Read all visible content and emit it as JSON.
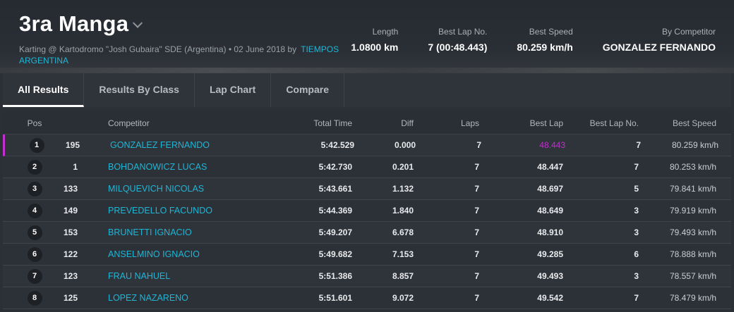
{
  "header": {
    "title": "3ra Manga",
    "subtitle_text": "Karting @ Kartodromo \"Josh Gubaira\" SDE (Argentina) • 02 June 2018 by",
    "organizer_link": "TIEMPOS ARGENTINA"
  },
  "stats": [
    {
      "label": "Length",
      "value": "1.0800 km"
    },
    {
      "label": "Best Lap No.",
      "value": "7 (00:48.443)"
    },
    {
      "label": "Best Speed",
      "value": "80.259 km/h"
    },
    {
      "label": "By Competitor",
      "value": "GONZALEZ FERNANDO"
    }
  ],
  "tabs": [
    "All Results",
    "Results By Class",
    "Lap Chart",
    "Compare"
  ],
  "columns": {
    "pos": "Pos",
    "competitor": "Competitor",
    "total": "Total Time",
    "diff": "Diff",
    "laps": "Laps",
    "best": "Best Lap",
    "bestno": "Best Lap No.",
    "speed": "Best Speed"
  },
  "rows": [
    {
      "pos": "1",
      "num": "195",
      "name": "GONZALEZ FERNANDO",
      "total": "5:42.529",
      "diff": "0.000",
      "laps": "7",
      "best": "48.443",
      "bestno": "7",
      "speed": "80.259 km/h"
    },
    {
      "pos": "2",
      "num": "1",
      "name": "BOHDANOWICZ LUCAS",
      "total": "5:42.730",
      "diff": "0.201",
      "laps": "7",
      "best": "48.447",
      "bestno": "7",
      "speed": "80.253 km/h"
    },
    {
      "pos": "3",
      "num": "133",
      "name": "MILQUEVICH NICOLAS",
      "total": "5:43.661",
      "diff": "1.132",
      "laps": "7",
      "best": "48.697",
      "bestno": "5",
      "speed": "79.841 km/h"
    },
    {
      "pos": "4",
      "num": "149",
      "name": "PREVEDELLO FACUNDO",
      "total": "5:44.369",
      "diff": "1.840",
      "laps": "7",
      "best": "48.649",
      "bestno": "3",
      "speed": "79.919 km/h"
    },
    {
      "pos": "5",
      "num": "153",
      "name": "BRUNETTI IGNACIO",
      "total": "5:49.207",
      "diff": "6.678",
      "laps": "7",
      "best": "48.910",
      "bestno": "3",
      "speed": "79.493 km/h"
    },
    {
      "pos": "6",
      "num": "122",
      "name": "ANSELMINO IGNACIO",
      "total": "5:49.682",
      "diff": "7.153",
      "laps": "7",
      "best": "49.285",
      "bestno": "6",
      "speed": "78.888 km/h"
    },
    {
      "pos": "7",
      "num": "123",
      "name": "FRAU NAHUEL",
      "total": "5:51.386",
      "diff": "8.857",
      "laps": "7",
      "best": "49.493",
      "bestno": "3",
      "speed": "78.557 km/h"
    },
    {
      "pos": "8",
      "num": "125",
      "name": "LOPEZ NAZARENO",
      "total": "5:51.601",
      "diff": "9.072",
      "laps": "7",
      "best": "49.542",
      "bestno": "7",
      "speed": "78.479 km/h"
    }
  ]
}
